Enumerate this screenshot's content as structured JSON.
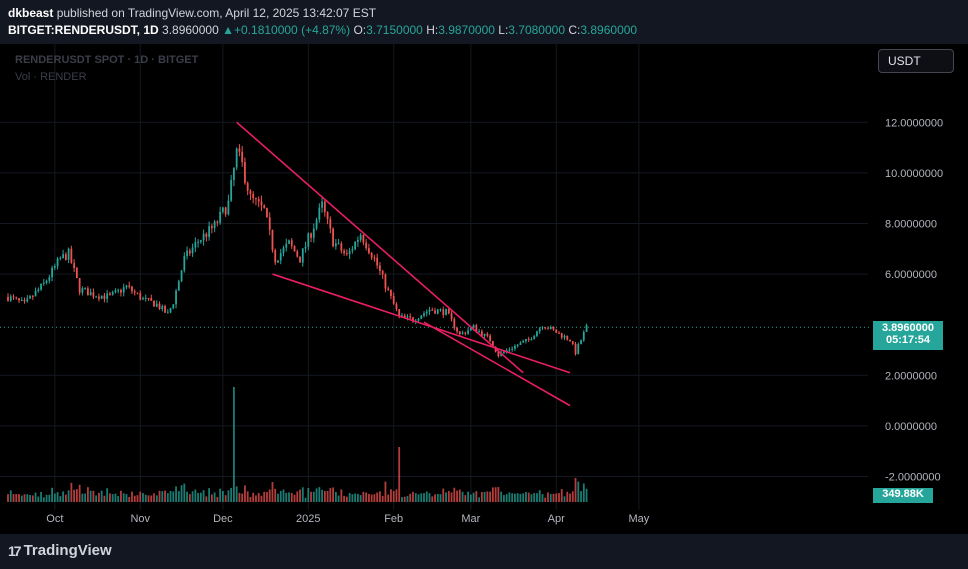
{
  "header": {
    "author": "dkbeast",
    "published_text": "published on TradingView.com, April 12, 2025 13:42:07 EST",
    "symbol": "BITGET:RENDERUSDT, 1D",
    "last_price": "3.8960000",
    "change": "+0.1810000 (+4.87%)",
    "open_label": "O:",
    "open": "3.7150000",
    "high_label": "H:",
    "high": "3.9870000",
    "low_label": "L:",
    "low": "3.7080000",
    "close_label": "C:",
    "close": "3.8960000"
  },
  "legend": {
    "title": "RENDERUSDT SPOT · 1D · BITGET",
    "volume": "Vol · RENDER"
  },
  "currency_button": "USDT",
  "price_tag": {
    "price": "3.8960000",
    "countdown": "05:17:54"
  },
  "volume_tag": "349.88K",
  "footer": {
    "brand": "TradingView"
  },
  "colors": {
    "up": "#26a69a",
    "down": "#ef5350",
    "trendline": "#e91e63",
    "background": "#000000"
  },
  "chart_data": {
    "type": "candlestick",
    "y_ticks": [
      "12.0000000",
      "10.0000000",
      "8.0000000",
      "6.0000000",
      "2.0000000",
      "0.0000000",
      "-2.0000000"
    ],
    "x_ticks": [
      "Oct",
      "Nov",
      "Dec",
      "2025",
      "Feb",
      "Mar",
      "Apr",
      "May"
    ],
    "ylim": [
      -2.5,
      12.5
    ],
    "series": [
      {
        "name": "RENDERUSDT",
        "close_path": [
          [
            "2024-09-14",
            5.1
          ],
          [
            "2024-09-20",
            4.8
          ],
          [
            "2024-09-27",
            5.6
          ],
          [
            "2024-10-03",
            6.6
          ],
          [
            "2024-10-06",
            6.8
          ],
          [
            "2024-10-10",
            5.4
          ],
          [
            "2024-10-15",
            5.2
          ],
          [
            "2024-10-21",
            5.1
          ],
          [
            "2024-10-27",
            5.5
          ],
          [
            "2024-11-02",
            5.0
          ],
          [
            "2024-11-07",
            4.8
          ],
          [
            "2024-11-11",
            4.4
          ],
          [
            "2024-11-13",
            4.9
          ],
          [
            "2024-11-17",
            6.6
          ],
          [
            "2024-11-22",
            7.3
          ],
          [
            "2024-11-28",
            7.9
          ],
          [
            "2024-12-03",
            8.8
          ],
          [
            "2024-12-06",
            10.8
          ],
          [
            "2024-12-08",
            10.3
          ],
          [
            "2024-12-11",
            9.0
          ],
          [
            "2024-12-16",
            8.5
          ],
          [
            "2024-12-20",
            6.6
          ],
          [
            "2024-12-25",
            7.2
          ],
          [
            "2024-12-29",
            6.6
          ],
          [
            "2025-01-06",
            8.7
          ],
          [
            "2025-01-10",
            7.3
          ],
          [
            "2025-01-15",
            6.7
          ],
          [
            "2025-01-20",
            7.6
          ],
          [
            "2025-01-25",
            6.6
          ],
          [
            "2025-01-30",
            5.3
          ],
          [
            "2025-02-03",
            4.3
          ],
          [
            "2025-02-08",
            4.2
          ],
          [
            "2025-02-14",
            4.6
          ],
          [
            "2025-02-20",
            4.5
          ],
          [
            "2025-02-25",
            3.6
          ],
          [
            "2025-03-02",
            3.9
          ],
          [
            "2025-03-08",
            3.4
          ],
          [
            "2025-03-11",
            2.8
          ],
          [
            "2025-03-16",
            3.1
          ],
          [
            "2025-03-22",
            3.4
          ],
          [
            "2025-03-27",
            4.0
          ],
          [
            "2025-04-01",
            3.7
          ],
          [
            "2025-04-06",
            3.4
          ],
          [
            "2025-04-08",
            2.9
          ],
          [
            "2025-04-10",
            3.4
          ],
          [
            "2025-04-12",
            3.896
          ]
        ],
        "volume_spikes": [
          [
            "2024-12-05",
            "very high"
          ],
          [
            "2025-02-03",
            "high"
          ]
        ]
      }
    ],
    "trendlines": [
      {
        "from": [
          "2024-12-06",
          12.0
        ],
        "to": [
          "2025-03-20",
          2.1
        ]
      },
      {
        "from": [
          "2024-12-19",
          6.0
        ],
        "to": [
          "2025-04-06",
          2.1
        ]
      },
      {
        "from": [
          "2025-02-12",
          4.1
        ],
        "to": [
          "2025-04-06",
          0.8
        ]
      }
    ],
    "current_price_line": 3.896,
    "last_volume": "349.88K"
  }
}
